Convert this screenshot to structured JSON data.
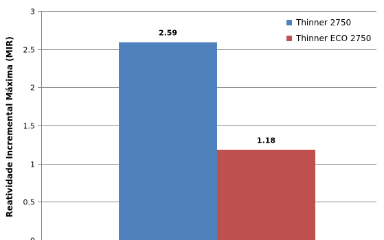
{
  "chart_data": {
    "type": "bar",
    "categories": [
      ""
    ],
    "series": [
      {
        "name": "Thinner 2750",
        "values": [
          2.59
        ],
        "color": "#4F81BD",
        "data_label": "2.59"
      },
      {
        "name": "Thinner ECO 2750",
        "values": [
          1.18
        ],
        "color": "#C0504D",
        "data_label": "1.18"
      }
    ],
    "title": "",
    "xlabel": "",
    "ylabel": "Reatividade Incremental Máxima (MIR)",
    "ylim": [
      0,
      3
    ],
    "yticks": [
      "0",
      "0.5",
      "1",
      "1.5",
      "2",
      "2.5",
      "3"
    ],
    "grid": true,
    "legend_position": "top-right"
  }
}
